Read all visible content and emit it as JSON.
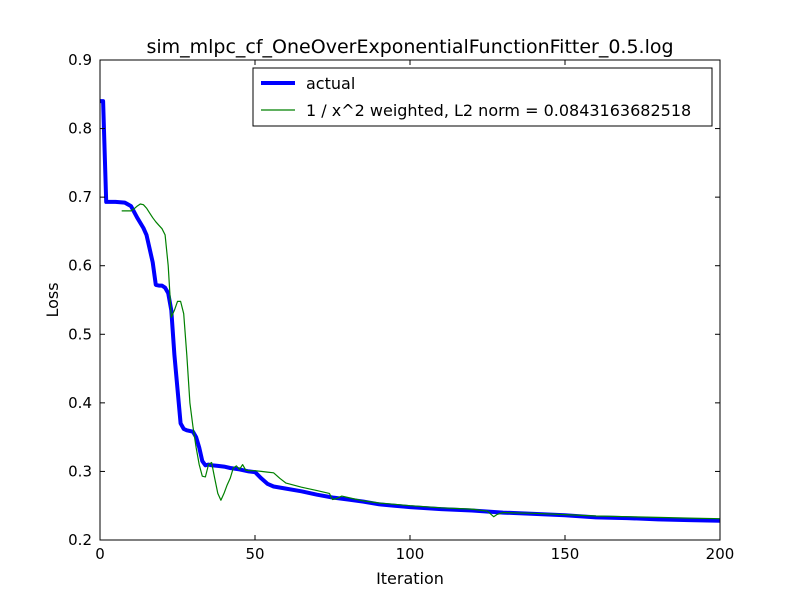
{
  "chart_data": {
    "type": "line",
    "title": "sim_mlpc_cf_OneOverExponentialFunctionFitter_0.5.log",
    "xlabel": "Iteration",
    "ylabel": "Loss",
    "xlim": [
      0,
      200
    ],
    "ylim": [
      0.2,
      0.9
    ],
    "xticks": [
      0,
      50,
      100,
      150,
      200
    ],
    "yticks": [
      0.2,
      0.3,
      0.4,
      0.5,
      0.6,
      0.7,
      0.8,
      0.9
    ],
    "xtick_labels": [
      "0",
      "50",
      "100",
      "150",
      "200"
    ],
    "ytick_labels": [
      "0.2",
      "0.3",
      "0.4",
      "0.5",
      "0.6",
      "0.7",
      "0.8",
      "0.9"
    ],
    "grid": false,
    "legend_position": "top-right",
    "series": [
      {
        "name": "actual",
        "color": "#0000ff",
        "x": [
          0,
          1,
          2,
          3,
          5,
          8,
          10,
          12,
          14,
          15,
          16,
          17,
          18,
          19,
          20,
          21,
          22,
          23,
          24,
          25,
          26,
          27,
          28,
          30,
          31,
          32,
          33,
          34,
          35,
          36,
          38,
          40,
          42,
          45,
          48,
          50,
          52,
          54,
          56,
          60,
          65,
          70,
          75,
          80,
          85,
          90,
          95,
          100,
          110,
          120,
          130,
          140,
          150,
          160,
          170,
          180,
          190,
          200
        ],
        "y": [
          0.84,
          0.84,
          0.693,
          0.693,
          0.693,
          0.692,
          0.687,
          0.67,
          0.655,
          0.645,
          0.625,
          0.605,
          0.572,
          0.571,
          0.571,
          0.568,
          0.56,
          0.535,
          0.47,
          0.42,
          0.37,
          0.362,
          0.36,
          0.358,
          0.35,
          0.335,
          0.315,
          0.309,
          0.31,
          0.309,
          0.308,
          0.307,
          0.305,
          0.303,
          0.3,
          0.299,
          0.29,
          0.282,
          0.278,
          0.275,
          0.271,
          0.266,
          0.262,
          0.259,
          0.256,
          0.252,
          0.25,
          0.248,
          0.245,
          0.243,
          0.24,
          0.238,
          0.236,
          0.233,
          0.232,
          0.23,
          0.229,
          0.228
        ]
      },
      {
        "name": "1 / x^2 weighted, L2 norm = 0.0843163682518",
        "color": "#008000",
        "x": [
          7,
          10,
          11,
          12,
          13,
          14,
          15,
          16,
          17,
          18,
          19,
          20,
          21,
          22,
          23,
          24,
          25,
          26,
          27,
          28,
          29,
          30,
          31,
          32,
          33,
          34,
          35,
          36,
          37,
          38,
          39,
          40,
          41,
          42,
          43,
          44,
          45,
          46,
          47,
          48,
          50,
          52,
          54,
          56,
          58,
          60,
          65,
          70,
          74,
          75,
          76,
          78,
          80,
          85,
          90,
          95,
          100,
          110,
          120,
          125,
          127,
          128,
          130,
          140,
          150,
          160,
          170,
          180,
          190,
          200
        ],
        "y": [
          0.68,
          0.68,
          0.683,
          0.687,
          0.69,
          0.689,
          0.684,
          0.677,
          0.67,
          0.664,
          0.659,
          0.654,
          0.645,
          0.6,
          0.525,
          0.535,
          0.548,
          0.548,
          0.53,
          0.47,
          0.4,
          0.365,
          0.335,
          0.31,
          0.293,
          0.292,
          0.31,
          0.313,
          0.29,
          0.268,
          0.258,
          0.268,
          0.28,
          0.29,
          0.305,
          0.308,
          0.303,
          0.31,
          0.302,
          0.301,
          0.301,
          0.3,
          0.299,
          0.298,
          0.29,
          0.283,
          0.277,
          0.272,
          0.268,
          0.259,
          0.26,
          0.264,
          0.262,
          0.257,
          0.254,
          0.252,
          0.25,
          0.247,
          0.245,
          0.242,
          0.234,
          0.237,
          0.24,
          0.239,
          0.237,
          0.235,
          0.234,
          0.233,
          0.232,
          0.231
        ]
      }
    ]
  }
}
